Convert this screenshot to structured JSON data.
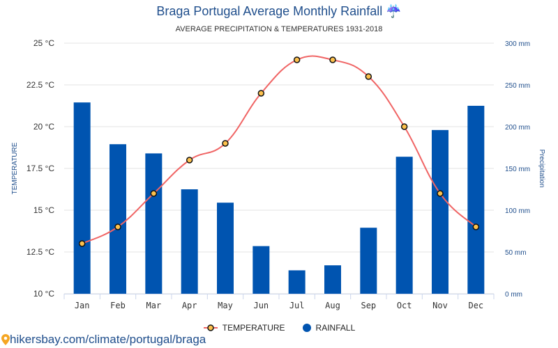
{
  "chart_data": {
    "type": "bar+line",
    "title": "Braga Portugal Average Monthly Rainfall",
    "title_icon": "umbrella-rain-icon",
    "subtitle": "AVERAGE PRECIPITATION & TEMPERATURES 1931-2018",
    "categories": [
      "Jan",
      "Feb",
      "Mar",
      "Apr",
      "May",
      "Jun",
      "Jul",
      "Aug",
      "Sep",
      "Oct",
      "Nov",
      "Dec"
    ],
    "series": [
      {
        "name": "TEMPERATURE",
        "type": "line",
        "axis": "left",
        "color": "#f06464",
        "marker_color": "#fdc14d",
        "values": [
          13,
          14,
          16,
          18,
          19,
          22,
          24,
          24,
          23,
          20,
          16,
          14
        ]
      },
      {
        "name": "RAINFALL",
        "type": "bar",
        "axis": "right",
        "color": "#0054b0",
        "values": [
          229,
          179,
          168,
          125,
          109,
          57,
          28,
          34,
          79,
          164,
          196,
          225
        ]
      }
    ],
    "y_left": {
      "label": "TEMPERATURE",
      "range": [
        10,
        25
      ],
      "ticks": [
        10,
        12.5,
        15,
        17.5,
        20,
        22.5,
        25
      ],
      "tick_labels": [
        "10 °C",
        "12.5 °C",
        "15 °C",
        "17.5 °C",
        "20 °C",
        "22.5 °C",
        "25 °C"
      ]
    },
    "y_right": {
      "label": "Precipitation",
      "range": [
        0,
        300
      ],
      "ticks": [
        0,
        50,
        100,
        150,
        200,
        250,
        300
      ],
      "tick_labels": [
        "0 mm",
        "50 mm",
        "100 mm",
        "150 mm",
        "200 mm",
        "250 mm",
        "300 mm"
      ]
    },
    "grid": true,
    "legend": {
      "position": "bottom",
      "entries": [
        "TEMPERATURE",
        "RAINFALL"
      ]
    }
  },
  "footer": {
    "url": "hikersbay.com/climate/portugal/braga",
    "icon": "location-pin-icon"
  }
}
